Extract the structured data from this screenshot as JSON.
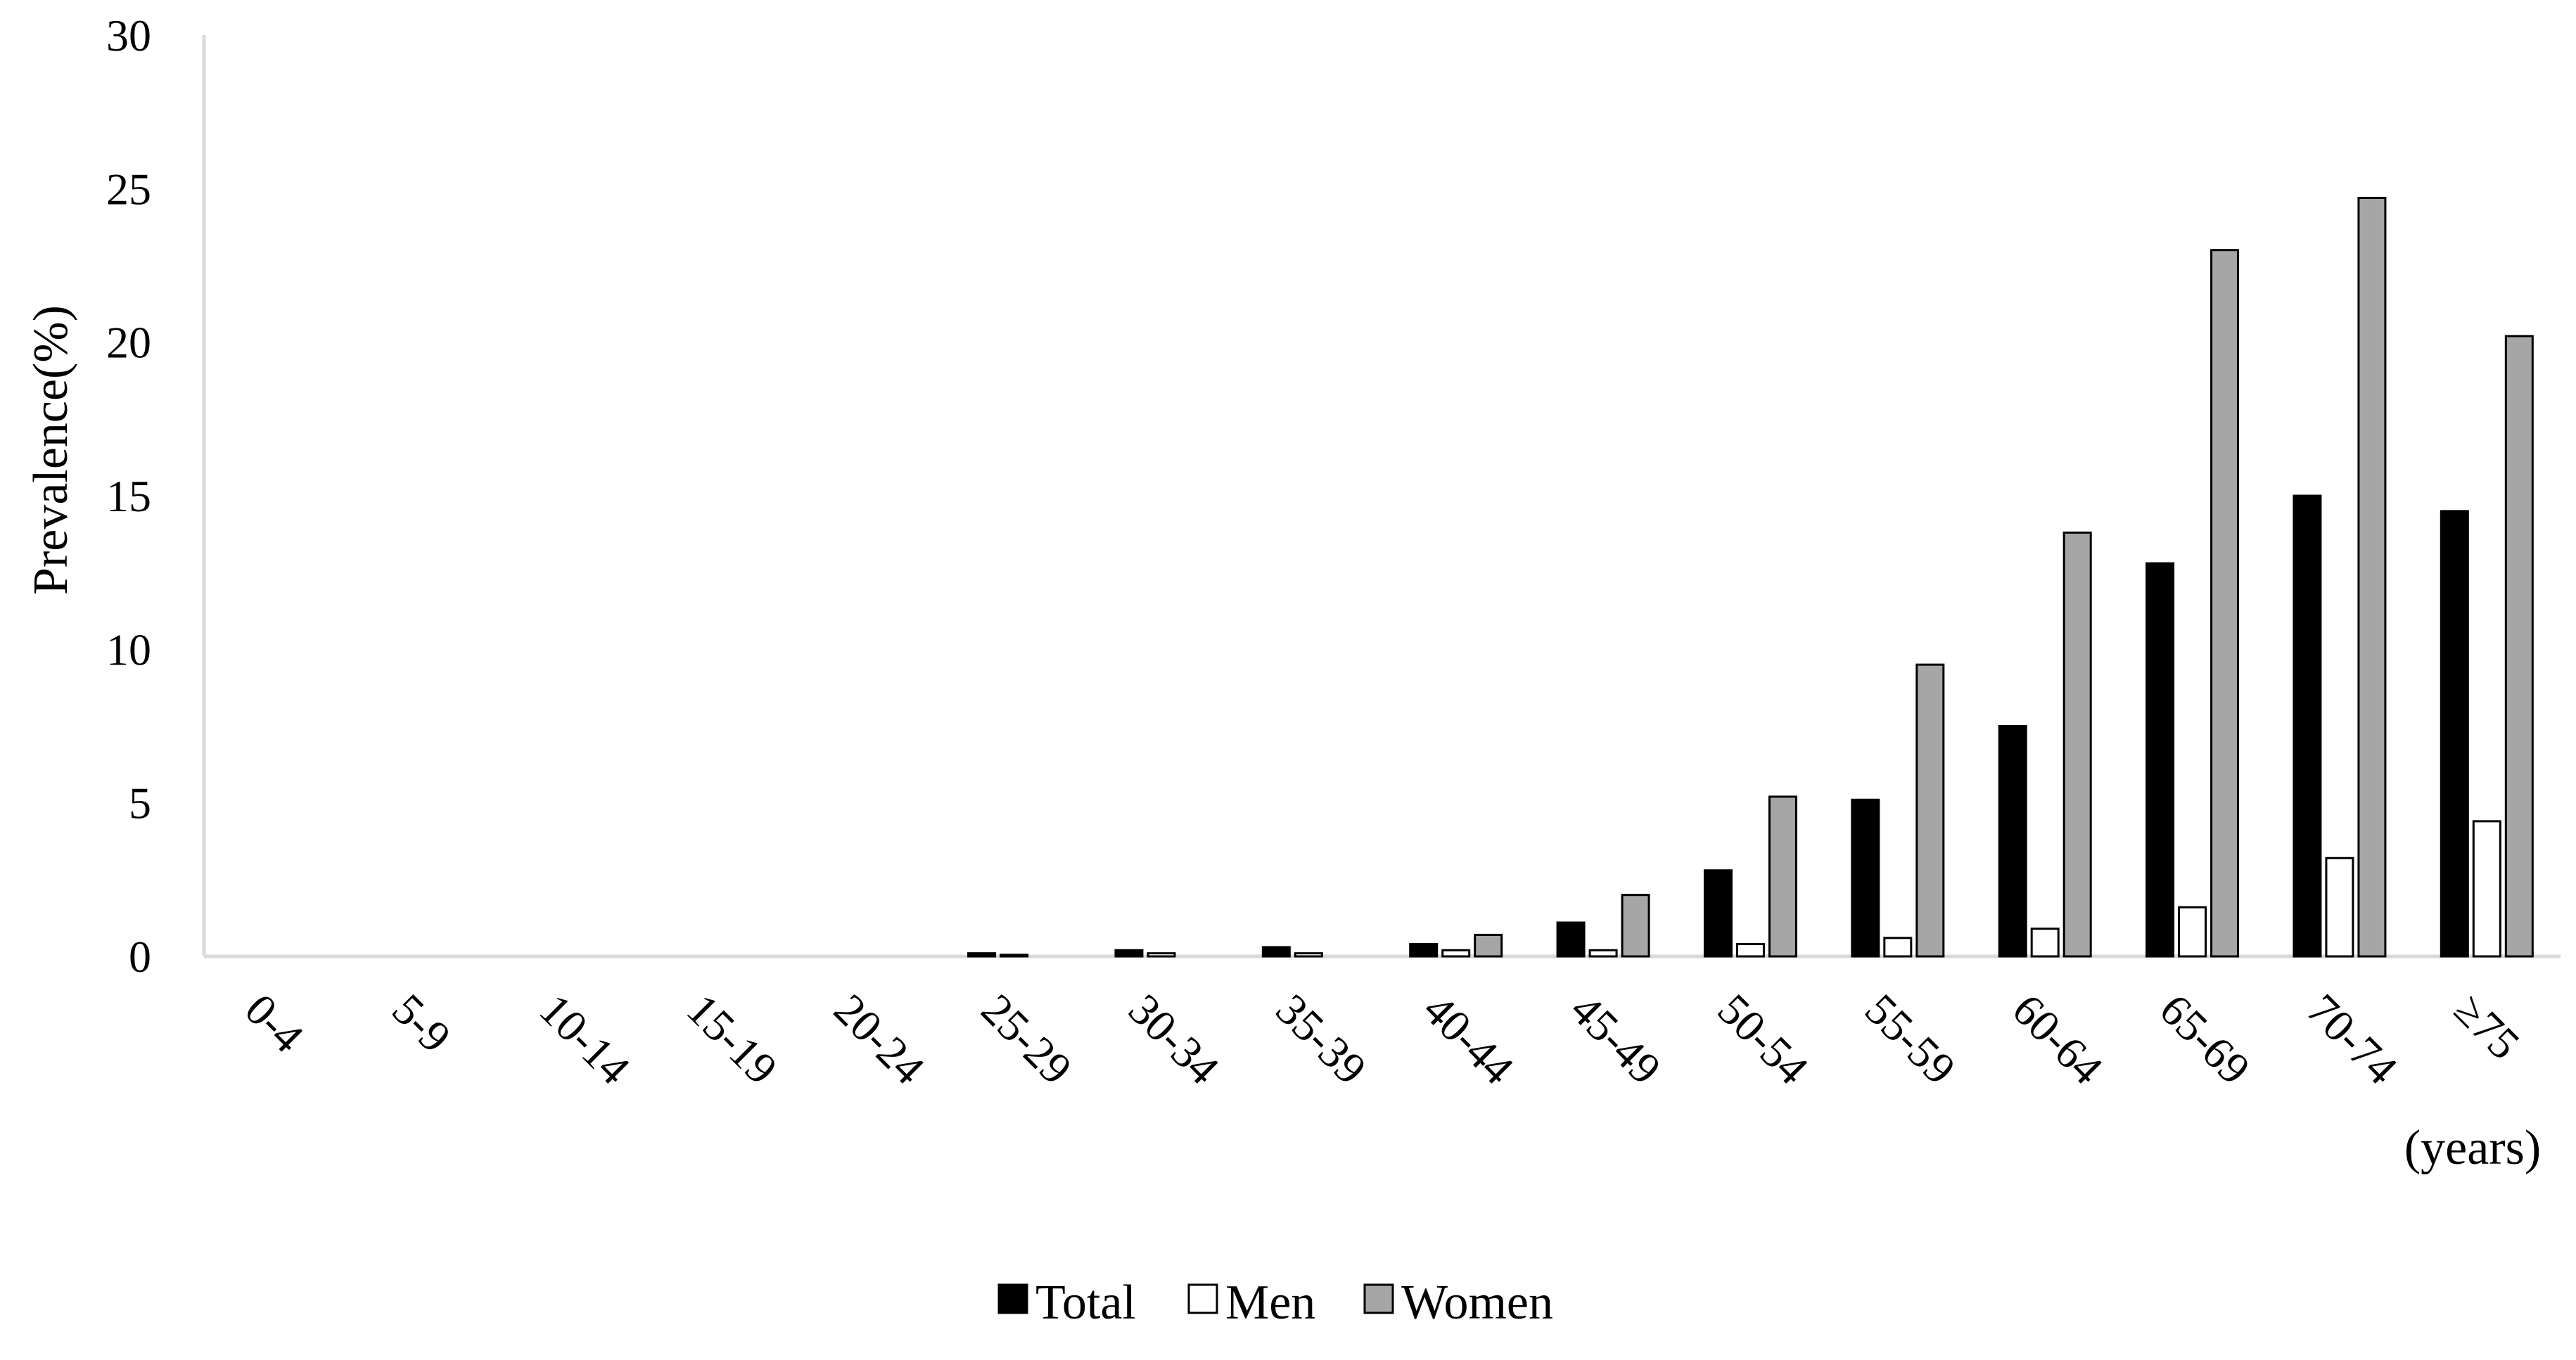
{
  "chart_data": {
    "type": "bar",
    "title": "",
    "ylabel": "Prevalence(%)",
    "xlabel": "(years)",
    "ylim": [
      0,
      30
    ],
    "yticks": [
      0,
      5,
      10,
      15,
      20,
      25,
      30
    ],
    "grid": false,
    "legend_position": "bottom-center",
    "categories": [
      "0-4",
      "5-9",
      "10-14",
      "15-19",
      "20-24",
      "25-29",
      "30-34",
      "35-39",
      "40-44",
      "45-49",
      "50-54",
      "55-59",
      "60-64",
      "65-69",
      "70-74",
      "≥75"
    ],
    "series": [
      {
        "name": "Total",
        "color": "#000000",
        "values": [
          0,
          0,
          0,
          0,
          0,
          0.1,
          0.2,
          0.3,
          0.4,
          1.1,
          2.8,
          5.1,
          7.5,
          12.8,
          15.0,
          14.5
        ]
      },
      {
        "name": "Men",
        "color": "#ffffff",
        "values": [
          0,
          0,
          0,
          0,
          0,
          0.05,
          0.1,
          0.1,
          0.2,
          0.2,
          0.4,
          0.6,
          0.9,
          1.6,
          3.2,
          4.4
        ]
      },
      {
        "name": "Women",
        "color": "#a6a6a6",
        "values": [
          0,
          0,
          0,
          0,
          0,
          0,
          0,
          0,
          0.7,
          2.0,
          5.2,
          9.5,
          13.8,
          23.0,
          24.7,
          20.2
        ]
      }
    ]
  }
}
